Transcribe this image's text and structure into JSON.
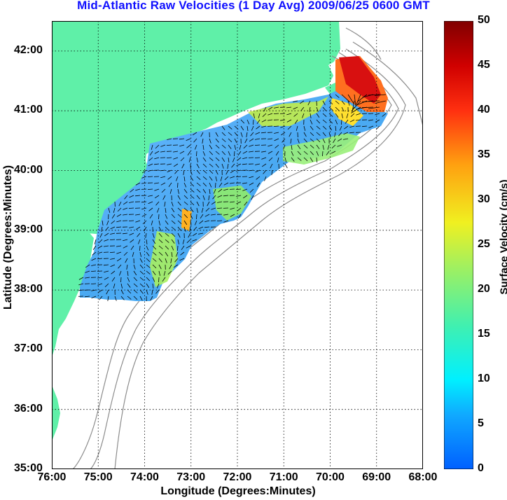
{
  "title": "Mid-Atlantic Raw Velocities (1 Day Avg) 2009/06/25 0600 GMT",
  "xlabel": "Longitude (Degrees:Minutes)",
  "ylabel": "Latitude (Degrees:Minutes)",
  "colorbar_label": "Surface Velocity (cm/s)",
  "x_ticks": [
    "76:00",
    "75:00",
    "74:00",
    "73:00",
    "72:00",
    "71:00",
    "70:00",
    "69:00",
    "68:00"
  ],
  "y_ticks": [
    "42:00",
    "41:00",
    "40:00",
    "39:00",
    "38:00",
    "37:00",
    "36:00",
    "35:00"
  ],
  "colorbar_ticks": [
    "50",
    "45",
    "40",
    "35",
    "30",
    "25",
    "20",
    "15",
    "10",
    "5",
    "0"
  ],
  "map": {
    "lon_range": [
      -76,
      -68
    ],
    "lat_range": [
      35,
      42.5
    ],
    "grid": true,
    "land_color": "#5ff0a8",
    "bathymetry_color": "#8c8c8c",
    "vector_color": "#000000"
  },
  "chart_data": {
    "type": "heatmap",
    "title": "Mid-Atlantic Raw Velocities (1 Day Avg) 2009/06/25 0600 GMT",
    "xlabel": "Longitude (Degrees:Minutes)",
    "ylabel": "Latitude (Degrees:Minutes)",
    "colorbar": {
      "label": "Surface Velocity (cm/s)",
      "range": [
        0,
        50
      ],
      "colormap": "jet"
    },
    "xlim": [
      -76,
      -68
    ],
    "ylim": [
      35,
      42.5
    ]
  }
}
